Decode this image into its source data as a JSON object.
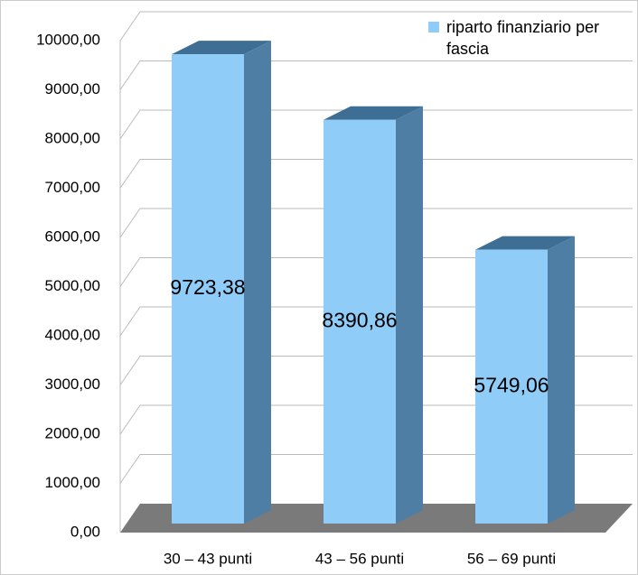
{
  "chart_data": {
    "type": "bar3d",
    "categories": [
      "30 – 43 punti",
      "43 – 56 punti",
      "56 – 69 punti"
    ],
    "series": [
      {
        "name": "riparto finanziario per fascia",
        "color": "#8fcdf8",
        "values": [
          9723.38,
          8390.86,
          5749.06
        ],
        "value_labels": [
          "9723,38",
          "8390,86",
          "5749,06"
        ]
      }
    ],
    "ylim": [
      0,
      10000
    ],
    "yticks": [
      {
        "value": 0,
        "label": "0,00"
      },
      {
        "value": 1000,
        "label": "1000,00"
      },
      {
        "value": 2000,
        "label": "2000,00"
      },
      {
        "value": 3000,
        "label": "3000,00"
      },
      {
        "value": 4000,
        "label": "4000,00"
      },
      {
        "value": 5000,
        "label": "5000,00"
      },
      {
        "value": 6000,
        "label": "6000,00"
      },
      {
        "value": 7000,
        "label": "7000,00"
      },
      {
        "value": 8000,
        "label": "8000,00"
      },
      {
        "value": 9000,
        "label": "9000,00"
      },
      {
        "value": 10000,
        "label": "10000,00"
      }
    ],
    "grid": true,
    "legend": "top-right"
  }
}
